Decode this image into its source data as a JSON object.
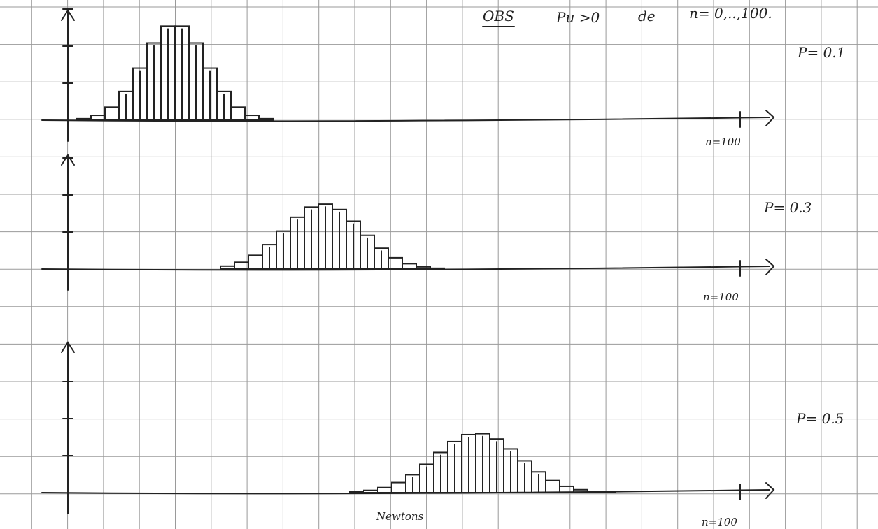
{
  "header": {
    "obs": "OBS",
    "condition": "Pu >0",
    "word": "de",
    "range": "n= 0,..,100."
  },
  "panels": [
    {
      "label": "P= 0.1",
      "end_label": "n=100"
    },
    {
      "label": "P= 0.3",
      "end_label": "n=100"
    },
    {
      "label": "P= 0.5",
      "end_label": "n=100"
    }
  ],
  "note": "Newtons"
}
